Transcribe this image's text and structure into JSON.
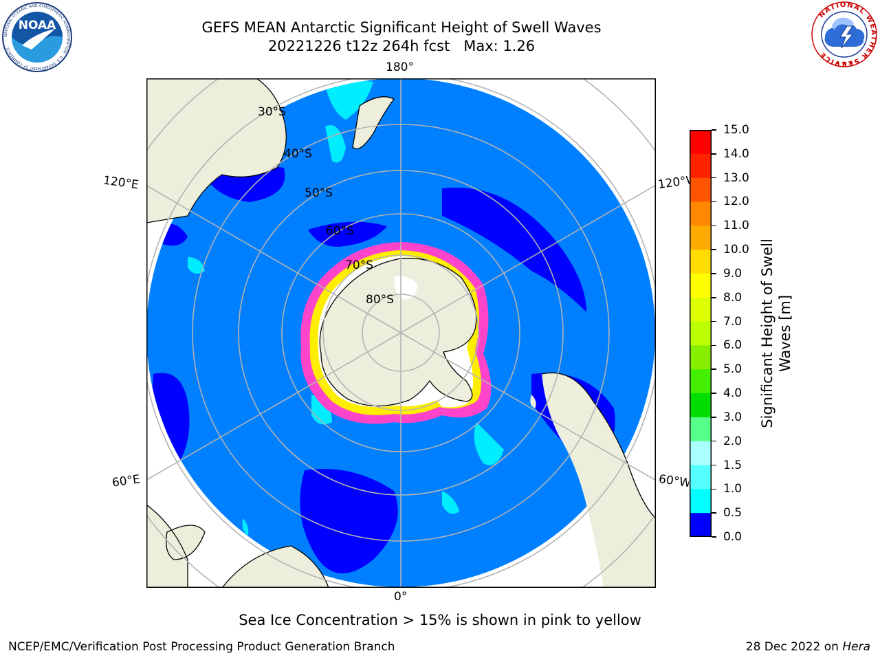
{
  "header": {
    "title_line1": "GEFS MEAN Antarctic Significant Height of Swell Waves",
    "title_line2": "20221226 t12z 264h fcst   Max: 1.26"
  },
  "logos": {
    "noaa_text": "NOAA",
    "noaa_ring_text": "NATIONAL OCEANIC AND ATMOSPHERIC ADMINISTRATION · U.S. DEPARTMENT OF COMMERCE",
    "nws_ring_text": "NATIONAL WEATHER SERVICE"
  },
  "map": {
    "projection": "south-polar-stereographic",
    "longitude_labels": {
      "top": "180°",
      "bottom": "0°",
      "upper_left": "120°E",
      "upper_right": "120°W",
      "lower_left": "60°E",
      "lower_right": "60°W"
    },
    "latitude_labels": [
      "30°S",
      "40°S",
      "50°S",
      "60°S",
      "70°S",
      "80°S"
    ],
    "colors": {
      "land": "#eeeedc",
      "ocean_low": "#0080ff",
      "ocean_zero": "#0000ff",
      "ocean_mid": "#00ffff",
      "ice_pink": "#ff44cc",
      "ice_yellow": "#ffee00",
      "grid": "#b3b3b3"
    }
  },
  "colorbar": {
    "label": "Significant Height of Swell\nWaves [m]",
    "ticks": [
      "15.0",
      "14.0",
      "13.0",
      "12.0",
      "11.0",
      "10.0",
      "9.0",
      "8.0",
      "7.0",
      "6.0",
      "5.0",
      "4.0",
      "3.0",
      "2.0",
      "1.5",
      "1.0",
      "0.5",
      "0.0"
    ],
    "colors_top_to_bottom": [
      "#ff0000",
      "#ff2200",
      "#ff5500",
      "#ff8800",
      "#ffaa00",
      "#ffdd00",
      "#ffff00",
      "#ddff00",
      "#bbff00",
      "#88ee00",
      "#44ee00",
      "#00dd00",
      "#55ff88",
      "#aaffff",
      "#55ffff",
      "#00ffff",
      "#0080ff",
      "#0000ff"
    ]
  },
  "subtitle": "Sea Ice Concentration > 15% is shown in pink to yellow",
  "footer": {
    "left": "NCEP/EMC/Verification Post Processing Product Generation Branch",
    "date": "28 Dec 2022 on ",
    "host": "Hera"
  }
}
